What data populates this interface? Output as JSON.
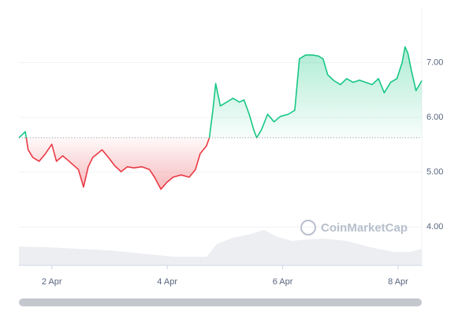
{
  "chart_data": {
    "type": "line",
    "x": [
      1.43,
      1.54,
      1.59,
      1.67,
      1.78,
      1.89,
      2.0,
      2.08,
      2.19,
      2.3,
      2.46,
      2.55,
      2.63,
      2.71,
      2.79,
      2.87,
      2.98,
      3.09,
      3.2,
      3.31,
      3.42,
      3.56,
      3.69,
      3.78,
      3.89,
      3.99,
      4.1,
      4.24,
      4.38,
      4.49,
      4.57,
      4.68,
      4.73,
      4.79,
      4.84,
      4.92,
      5.03,
      5.14,
      5.25,
      5.33,
      5.42,
      5.5,
      5.55,
      5.63,
      5.74,
      5.85,
      5.96,
      6.1,
      6.21,
      6.29,
      6.4,
      6.51,
      6.62,
      6.7,
      6.78,
      6.89,
      7.0,
      7.11,
      7.22,
      7.33,
      7.44,
      7.55,
      7.66,
      7.76,
      7.87,
      7.98,
      8.07,
      8.12,
      8.17,
      8.23,
      8.31,
      8.41
    ],
    "values": [
      5.63,
      5.74,
      5.41,
      5.27,
      5.2,
      5.34,
      5.51,
      5.2,
      5.3,
      5.2,
      5.05,
      4.73,
      5.1,
      5.27,
      5.34,
      5.41,
      5.27,
      5.12,
      5.01,
      5.1,
      5.08,
      5.1,
      5.05,
      4.91,
      4.69,
      4.81,
      4.91,
      4.95,
      4.91,
      5.05,
      5.34,
      5.48,
      5.63,
      6.13,
      6.62,
      6.21,
      6.28,
      6.35,
      6.28,
      6.32,
      6.06,
      5.77,
      5.63,
      5.77,
      6.06,
      5.92,
      6.02,
      6.06,
      6.13,
      7.07,
      7.14,
      7.14,
      7.12,
      7.07,
      6.78,
      6.67,
      6.6,
      6.71,
      6.64,
      6.68,
      6.64,
      6.6,
      6.71,
      6.45,
      6.64,
      6.71,
      7.0,
      7.29,
      7.17,
      6.86,
      6.49,
      6.67
    ],
    "baseline": 5.63,
    "up_color": "#16c784",
    "down_color": "#ea3943",
    "xlim": [
      1.43,
      8.41
    ],
    "xticks": [
      {
        "value": 2,
        "label": "2 Apr"
      },
      {
        "value": 4,
        "label": "4 Apr"
      },
      {
        "value": 6,
        "label": "6 Apr"
      },
      {
        "value": 8,
        "label": "8 Apr"
      }
    ],
    "ylim": [
      3.3,
      8.0
    ],
    "yticks": [
      {
        "value": 4,
        "label": "4.00"
      },
      {
        "value": 5,
        "label": "5.00"
      },
      {
        "value": 6,
        "label": "6.00"
      },
      {
        "value": 7,
        "label": "7.00"
      }
    ],
    "grid": true,
    "watermark": "CoinMarketCap"
  }
}
